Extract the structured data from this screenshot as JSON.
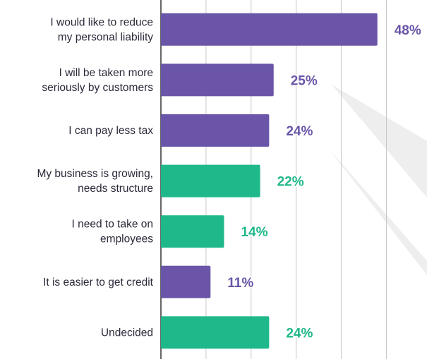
{
  "chart_data": {
    "type": "hbar",
    "categories": [
      "I would like to reduce\nmy personal liability",
      "I will be taken more\nseriously by customers",
      "I can pay less tax",
      "My business is growing,\nneeds structure",
      "I need to take on\nemployees",
      "It is easier to get credit",
      "Undecided"
    ],
    "values": [
      48,
      25,
      24,
      22,
      14,
      11,
      24
    ],
    "value_labels": [
      "48%",
      "25%",
      "24%",
      "22%",
      "14%",
      "11%",
      "24%"
    ],
    "colors": [
      "#6a55a8",
      "#6a55a8",
      "#6a55a8",
      "#1fb88a",
      "#1fb88a",
      "#6a55a8",
      "#1fb88a"
    ],
    "xlim": [
      0,
      59
    ],
    "xticks": [
      10,
      20,
      30,
      40,
      50
    ],
    "grid": true
  }
}
